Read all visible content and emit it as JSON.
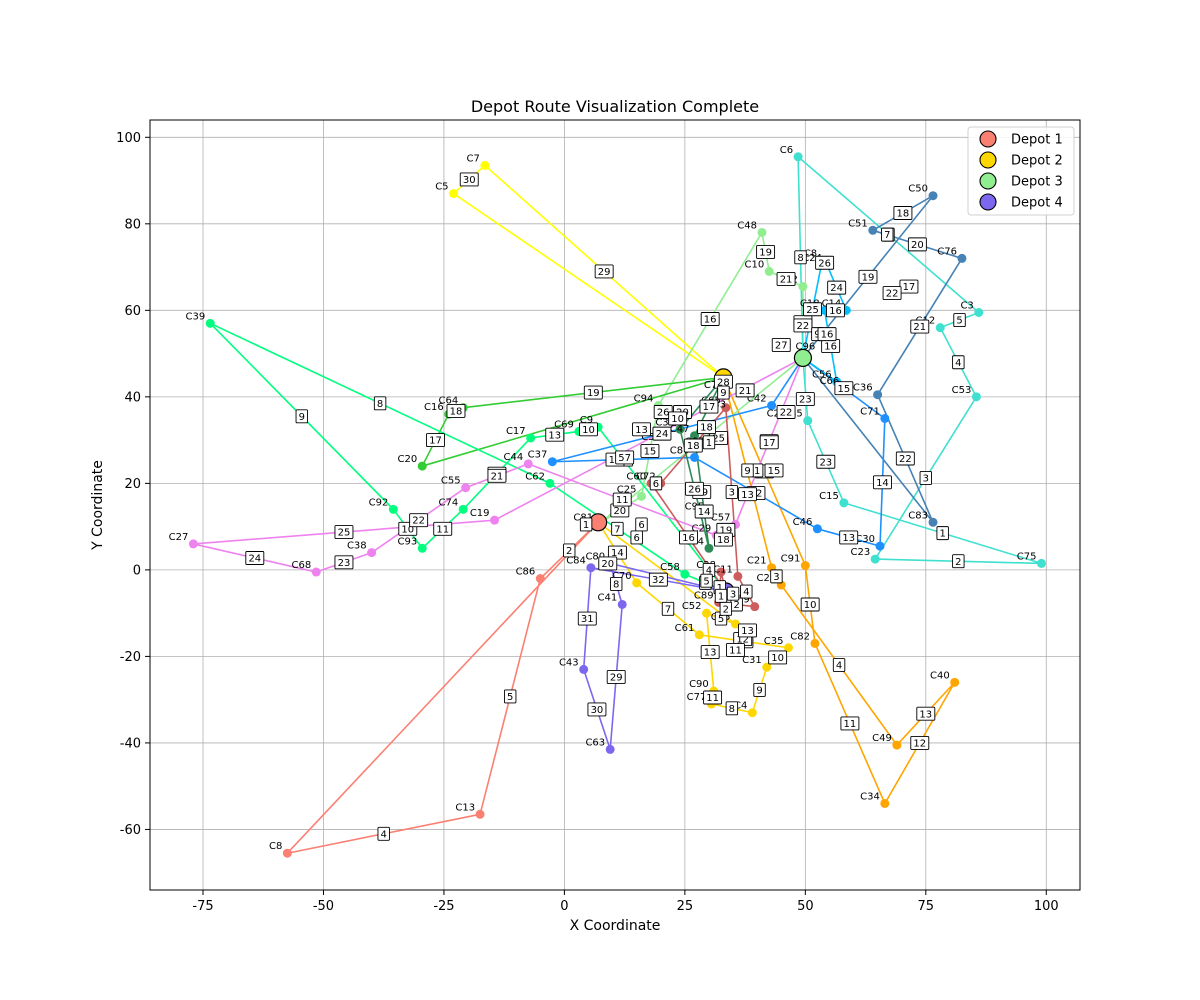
{
  "chart_data": {
    "type": "scatter",
    "title": "Depot Route Visualization Complete",
    "xlabel": "X Coordinate",
    "ylabel": "Y Coordinate",
    "xlim": [
      -86,
      107
    ],
    "ylim": [
      -74,
      104
    ],
    "xticks": [
      -75,
      -50,
      -25,
      0,
      25,
      50,
      75,
      100
    ],
    "yticks": [
      -60,
      -40,
      -20,
      0,
      20,
      40,
      60,
      80,
      100
    ],
    "grid": true,
    "legend_position": "top-right",
    "depots": [
      {
        "name": "Depot 1",
        "x": 7,
        "y": 11,
        "color": "#fa8072"
      },
      {
        "name": "Depot 2",
        "x": 33,
        "y": 44.5,
        "color": "#ffd700"
      },
      {
        "name": "Depot 3",
        "x": 49.5,
        "y": 49,
        "color": "#90ee90"
      },
      {
        "name": "Depot 4",
        "x": 33.5,
        "y": -5,
        "color": "#7b68ee"
      }
    ],
    "routes": [
      {
        "color": "#fa8072",
        "depot": 0,
        "stops": [
          {
            "label": "C86",
            "x": -5,
            "y": -2,
            "seq": "2"
          },
          {
            "label": "C13",
            "x": -17.5,
            "y": -56.5,
            "seq": "5"
          },
          {
            "label": "C8",
            "x": -57.5,
            "y": -65.5,
            "seq": "4"
          }
        ]
      },
      {
        "color": "#ffff00",
        "depot": 1,
        "stops": [
          {
            "label": "C7",
            "x": -16.5,
            "y": 93.5,
            "seq": "29"
          },
          {
            "label": "C5",
            "x": -23,
            "y": 87,
            "seq": "30"
          }
        ]
      },
      {
        "color": "#ffa500",
        "depot": 1,
        "stops": [
          {
            "label": "C91",
            "x": 50,
            "y": 1,
            "seq": "14"
          },
          {
            "label": "C82",
            "x": 52,
            "y": -17,
            "seq": "10"
          },
          {
            "label": "C34",
            "x": 66.5,
            "y": -54,
            "seq": "11"
          },
          {
            "label": "C40",
            "x": 81,
            "y": -26,
            "seq": "12"
          },
          {
            "label": "C49",
            "x": 69,
            "y": -40.5,
            "seq": "13"
          },
          {
            "label": "C26",
            "x": 45,
            "y": -3.5,
            "seq": "4"
          },
          {
            "label": "C21",
            "x": 43,
            "y": 0.5,
            "seq": "3"
          }
        ]
      },
      {
        "color": "#ffd700",
        "depot": 0,
        "stops": [
          {
            "label": "C70",
            "x": 15,
            "y": -3,
            "seq": "14"
          },
          {
            "label": "C61",
            "x": 28,
            "y": -15,
            "seq": "7"
          },
          {
            "label": "C35",
            "x": 46.5,
            "y": -18,
            "seq": "12"
          },
          {
            "label": "C31",
            "x": 42,
            "y": -22.5,
            "seq": "10"
          },
          {
            "label": "C4",
            "x": 39,
            "y": -33,
            "seq": "9"
          },
          {
            "label": "C77",
            "x": 30.5,
            "y": -31,
            "seq": "8"
          },
          {
            "label": "C90",
            "x": 31,
            "y": -28,
            "seq": "11"
          },
          {
            "label": "C52",
            "x": 29.5,
            "y": -10,
            "seq": "13"
          },
          {
            "label": "C45",
            "x": 35.5,
            "y": -12.5,
            "seq": "5"
          }
        ]
      },
      {
        "color": "#90ee90",
        "depot": 2,
        "stops": [
          {
            "label": "C2",
            "x": 49.5,
            "y": 65.5,
            "seq": "20"
          },
          {
            "label": "C10",
            "x": 42.5,
            "y": 69,
            "seq": "21"
          },
          {
            "label": "C48",
            "x": 41,
            "y": 78,
            "seq": "19"
          },
          {
            "label": "C94",
            "x": 19.5,
            "y": 38,
            "seq": "16"
          },
          {
            "label": "C25",
            "x": 16,
            "y": 17,
            "seq": "15"
          },
          {
            "label": "C81",
            "x": 7,
            "y": 10.5,
            "seq": "20"
          }
        ]
      },
      {
        "color": "#32cd32",
        "depot": 1,
        "stops": [
          {
            "label": "C64",
            "x": -21,
            "y": 37.5,
            "seq": "19"
          },
          {
            "label": "C16",
            "x": -24,
            "y": 36,
            "seq": "18"
          },
          {
            "label": "C20",
            "x": -29.5,
            "y": 24,
            "seq": "17"
          }
        ]
      },
      {
        "color": "#00ff7f",
        "depot": 3,
        "stops": [
          {
            "label": "C58",
            "x": 25,
            "y": -1,
            "seq": "6"
          },
          {
            "label": "C62",
            "x": -3,
            "y": 20,
            "seq": "7"
          },
          {
            "label": "C39",
            "x": -73.5,
            "y": 57,
            "seq": "8"
          },
          {
            "label": "C92",
            "x": -35.5,
            "y": 14,
            "seq": "9"
          },
          {
            "label": "C93",
            "x": -29.5,
            "y": 5,
            "seq": "10"
          },
          {
            "label": "C74",
            "x": -21,
            "y": 14,
            "seq": "11"
          },
          {
            "label": "C17",
            "x": -7,
            "y": 30.5,
            "seq": "12"
          },
          {
            "label": "C69",
            "x": 3,
            "y": 32,
            "seq": "13"
          },
          {
            "label": "C9",
            "x": 7,
            "y": 33,
            "seq": "10"
          }
        ]
      },
      {
        "color": "#ee82ee",
        "depot": 2,
        "stops": [
          {
            "label": "C57",
            "x": 35.5,
            "y": 10.5,
            "seq": "18"
          },
          {
            "label": "C29",
            "x": 31.5,
            "y": 8,
            "seq": "19"
          },
          {
            "label": "C44",
            "x": -7.5,
            "y": 24.5,
            "seq": "11"
          },
          {
            "label": "C55",
            "x": -20.5,
            "y": 19,
            "seq": "21"
          },
          {
            "label": "C38",
            "x": -40,
            "y": 4,
            "seq": "22"
          },
          {
            "label": "C68",
            "x": -51.5,
            "y": -0.5,
            "seq": "23"
          },
          {
            "label": "C27",
            "x": -77,
            "y": 6,
            "seq": "24"
          },
          {
            "label": "C19",
            "x": -14.5,
            "y": 11.5,
            "seq": "25"
          }
        ]
      },
      {
        "color": "#40e0d0",
        "depot": 2,
        "stops": [
          {
            "label": "C6",
            "x": 48.5,
            "y": 95.5,
            "seq": "8"
          },
          {
            "label": "C3",
            "x": 86,
            "y": 59.5,
            "seq": "6"
          },
          {
            "label": "C12",
            "x": 78,
            "y": 56,
            "seq": "5"
          },
          {
            "label": "C53",
            "x": 85.5,
            "y": 40,
            "seq": "4"
          },
          {
            "label": "C23",
            "x": 64.5,
            "y": 2.5,
            "seq": "3"
          },
          {
            "label": "C75",
            "x": 99,
            "y": 1.5,
            "seq": "2"
          },
          {
            "label": "C15",
            "x": 58,
            "y": 15.5,
            "seq": "1"
          },
          {
            "label": "C85",
            "x": 50.5,
            "y": 34.5,
            "seq": "23"
          }
        ]
      },
      {
        "color": "#4682b4",
        "depot": 2,
        "stops": [
          {
            "label": "C50",
            "x": 76.5,
            "y": 86.5,
            "seq": "19"
          },
          {
            "label": "C51",
            "x": 64,
            "y": 78.5,
            "seq": "18"
          },
          {
            "label": "C76",
            "x": 82.5,
            "y": 72,
            "seq": "20"
          },
          {
            "label": "C36",
            "x": 65,
            "y": 40.5,
            "seq": "21"
          },
          {
            "label": "C83",
            "x": 76.5,
            "y": 11,
            "seq": "22"
          }
        ]
      },
      {
        "color": "#1e90ff",
        "depot": 2,
        "stops": [
          {
            "label": "C71",
            "x": 66.5,
            "y": 35,
            "seq": "15"
          },
          {
            "label": "C30",
            "x": 65.5,
            "y": 5.5,
            "seq": "14"
          },
          {
            "label": "C46",
            "x": 52.5,
            "y": 9.5,
            "seq": "13"
          },
          {
            "label": "C87",
            "x": 27,
            "y": 26,
            "seq": "12"
          },
          {
            "label": "C37",
            "x": -2.5,
            "y": 25,
            "seq": "11"
          },
          {
            "label": "C42",
            "x": 43,
            "y": 38,
            "seq": "24"
          }
        ]
      },
      {
        "color": "#00bfff",
        "depot": 2,
        "stops": [
          {
            "label": "C8_",
            "x": 53.5,
            "y": 71.5,
            "seq": "25"
          },
          {
            "label": "C24",
            "x": 54.5,
            "y": 70.5,
            "seq": "26"
          },
          {
            "label": "C14",
            "x": 58.5,
            "y": 60,
            "seq": "24"
          },
          {
            "label": "C18",
            "x": 54,
            "y": 60,
            "seq": "16"
          },
          {
            "label": "C56",
            "x": 56.5,
            "y": 43.5,
            "seq": "16"
          }
        ]
      },
      {
        "color": "#cd5c5c",
        "depot": 3,
        "stops": [
          {
            "label": "C60",
            "x": 18,
            "y": 20,
            "seq": "16"
          },
          {
            "label": "C72",
            "x": 20,
            "y": 20,
            "seq": "6"
          },
          {
            "label": "C65",
            "x": 33.5,
            "y": 37.5,
            "seq": "18"
          },
          {
            "label": "C11",
            "x": 36,
            "y": -1.5,
            "seq": "3"
          },
          {
            "label": "C79",
            "x": 39.5,
            "y": -8.5,
            "seq": "4"
          },
          {
            "label": "C89",
            "x": 32,
            "y": -7.5,
            "seq": "2"
          },
          {
            "label": "C28",
            "x": 32.5,
            "y": -0.5,
            "seq": "1"
          }
        ]
      },
      {
        "color": "#7b68ee",
        "depot": 3,
        "stops": [
          {
            "label": "C84",
            "x": 5.5,
            "y": 0.5,
            "seq": "32"
          },
          {
            "label": "C43",
            "x": 4,
            "y": -23,
            "seq": "31"
          },
          {
            "label": "C63",
            "x": 9.5,
            "y": -41.5,
            "seq": "30"
          },
          {
            "label": "C41",
            "x": 12,
            "y": -8,
            "seq": "29"
          },
          {
            "label": "C80",
            "x": 9.5,
            "y": 1.5,
            "seq": "8"
          }
        ]
      },
      {
        "color": "#2e8b57",
        "depot": 1,
        "stops": [
          {
            "label": "C47",
            "x": 27,
            "y": 31,
            "seq": "17"
          },
          {
            "label": "C54",
            "x": 30,
            "y": 5,
            "seq": "19"
          },
          {
            "label": "C32",
            "x": 24,
            "y": 32.5,
            "seq": "26"
          }
        ]
      }
    ],
    "dense_labels": [
      {
        "label": "C33",
        "x": 31.5,
        "y": 37.5
      },
      {
        "label": "C73",
        "x": 31,
        "y": 42
      },
      {
        "label": "C67",
        "x": 27,
        "y": 29
      },
      {
        "label": "C59",
        "x": 18,
        "y": 30
      },
      {
        "label": "C95",
        "x": 27,
        "y": 14
      },
      {
        "label": "C22",
        "x": 44,
        "y": 35.5
      },
      {
        "label": "C96",
        "x": 50,
        "y": 51
      },
      {
        "label": "C66",
        "x": 55,
        "y": 43
      }
    ],
    "extra_seq_labels": [
      {
        "text": "28",
        "x": 33,
        "y": 43.5
      },
      {
        "text": "9",
        "x": 33,
        "y": 41
      },
      {
        "text": "21",
        "x": 37.5,
        "y": 41.5
      },
      {
        "text": "26",
        "x": 20.5,
        "y": 36.5
      },
      {
        "text": "20",
        "x": 24.5,
        "y": 36.5
      },
      {
        "text": "10",
        "x": 23.5,
        "y": 35
      },
      {
        "text": "13",
        "x": 16,
        "y": 32.5
      },
      {
        "text": "12",
        "x": 10.5,
        "y": 25.5
      },
      {
        "text": "57",
        "x": 12.5,
        "y": 26
      },
      {
        "text": "25",
        "x": 32,
        "y": 30.5
      },
      {
        "text": "1",
        "x": 30,
        "y": 29.5
      },
      {
        "text": "18",
        "x": 29.5,
        "y": 33
      },
      {
        "text": "14",
        "x": 29,
        "y": 13.5
      },
      {
        "text": "18",
        "x": 33,
        "y": 7
      },
      {
        "text": "27",
        "x": 45,
        "y": 52
      },
      {
        "text": "22",
        "x": 49.5,
        "y": 56.5
      },
      {
        "text": "9",
        "x": 52.5,
        "y": 54.5
      },
      {
        "text": "16",
        "x": 54.5,
        "y": 54.5
      },
      {
        "text": "22",
        "x": 46,
        "y": 36.5
      },
      {
        "text": "23",
        "x": 50,
        "y": 39.5
      },
      {
        "text": "17",
        "x": 42.5,
        "y": 29.5
      },
      {
        "text": "1",
        "x": 40,
        "y": 23
      },
      {
        "text": "15",
        "x": 43.5,
        "y": 23
      },
      {
        "text": "9",
        "x": 38,
        "y": 23
      },
      {
        "text": "13",
        "x": 38,
        "y": 17.5
      },
      {
        "text": "17",
        "x": 71.5,
        "y": 65.5
      },
      {
        "text": "7",
        "x": 67,
        "y": 77.5
      },
      {
        "text": "6",
        "x": 16,
        "y": 10.5
      },
      {
        "text": "6",
        "x": 15,
        "y": 7.5
      },
      {
        "text": "12",
        "x": 37,
        "y": -16
      },
      {
        "text": "11",
        "x": 35.5,
        "y": -18.5
      },
      {
        "text": "13",
        "x": 38,
        "y": -14
      },
      {
        "text": "3",
        "x": 35,
        "y": -5.5
      },
      {
        "text": "2",
        "x": 33.5,
        "y": -9
      },
      {
        "text": "1",
        "x": 32.5,
        "y": -6
      },
      {
        "text": "4",
        "x": 30,
        "y": 0
      },
      {
        "text": "5",
        "x": 29.5,
        "y": -2.5
      },
      {
        "text": "20",
        "x": 9,
        "y": 1.5
      },
      {
        "text": "1",
        "x": 4.5,
        "y": 10.5
      },
      {
        "text": "22",
        "x": 68,
        "y": 64
      }
    ]
  }
}
